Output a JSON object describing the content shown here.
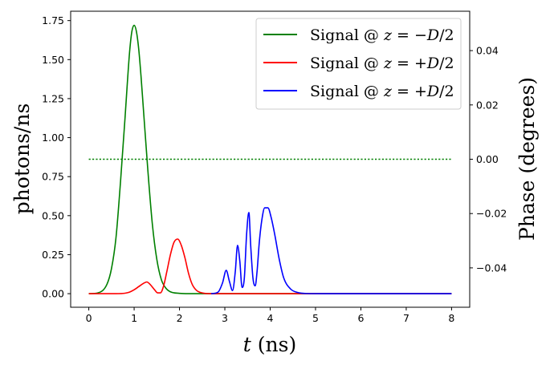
{
  "chart_data": {
    "type": "line",
    "xlabel": "t (ns)",
    "ylabel": "photons/ns",
    "y2label": "Phase (degrees)",
    "xlim": [
      -0.4,
      8.4
    ],
    "ylim": [
      -0.087,
      1.81
    ],
    "y2lim": [
      -0.0545,
      0.0545
    ],
    "xticks": [
      "0",
      "1",
      "2",
      "3",
      "4",
      "5",
      "6",
      "7",
      "8"
    ],
    "yticks": [
      "0.00",
      "0.25",
      "0.50",
      "0.75",
      "1.00",
      "1.25",
      "1.50",
      "1.75"
    ],
    "y2ticks": [
      "0.04",
      "0.02",
      "0.00",
      "−0.02",
      "−0.04"
    ],
    "legend_position": "top-right",
    "series": [
      {
        "name": "Signal @ z = −D/2",
        "color": "#008000",
        "style": "solid",
        "axis": "left",
        "x": [
          0,
          0.2,
          0.4,
          0.5,
          0.6,
          0.7,
          0.8,
          0.85,
          0.9,
          0.95,
          1.0,
          1.05,
          1.1,
          1.15,
          1.2,
          1.3,
          1.4,
          1.5,
          1.6,
          1.7,
          1.8,
          2.0,
          2.2,
          2.5,
          3.0,
          4.0,
          5.0,
          6.0,
          7.0,
          8.0
        ],
        "y": [
          0,
          0.005,
          0.06,
          0.16,
          0.36,
          0.72,
          1.13,
          1.35,
          1.55,
          1.68,
          1.72,
          1.68,
          1.57,
          1.4,
          1.2,
          0.8,
          0.45,
          0.22,
          0.09,
          0.035,
          0.012,
          0.002,
          0,
          0,
          0,
          0,
          0,
          0,
          0,
          0
        ]
      },
      {
        "name": "Signal @ z = +D/2",
        "color": "#ff0000",
        "style": "solid",
        "axis": "left",
        "x": [
          0,
          0.6,
          0.8,
          0.9,
          1.0,
          1.1,
          1.2,
          1.28,
          1.35,
          1.45,
          1.52,
          1.58,
          1.65,
          1.72,
          1.8,
          1.88,
          1.96,
          2.04,
          2.12,
          2.2,
          2.28,
          2.38,
          2.5,
          2.7,
          3.0,
          4.0,
          5.0,
          6.0,
          7.0,
          8.0
        ],
        "y": [
          0,
          0,
          0.003,
          0.01,
          0.025,
          0.045,
          0.065,
          0.075,
          0.06,
          0.025,
          0.005,
          0.005,
          0.05,
          0.14,
          0.25,
          0.33,
          0.35,
          0.31,
          0.23,
          0.13,
          0.06,
          0.02,
          0.005,
          0,
          0,
          0,
          0,
          0,
          0,
          0
        ]
      },
      {
        "name": "Signal @ z = +D/2",
        "color": "#0000ff",
        "style": "solid",
        "axis": "left",
        "x": [
          2.7,
          2.85,
          2.95,
          3.03,
          3.1,
          3.17,
          3.23,
          3.28,
          3.33,
          3.38,
          3.43,
          3.48,
          3.53,
          3.57,
          3.62,
          3.67,
          3.71,
          3.76,
          3.82,
          3.88,
          3.95,
          4.02,
          4.1,
          4.2,
          4.3,
          4.45,
          4.6,
          4.8,
          5.2,
          6.0,
          7.0,
          8.0
        ],
        "y": [
          0,
          0.01,
          0.07,
          0.15,
          0.08,
          0.02,
          0.14,
          0.31,
          0.21,
          0.04,
          0.1,
          0.38,
          0.52,
          0.31,
          0.1,
          0.05,
          0.14,
          0.33,
          0.48,
          0.55,
          0.55,
          0.49,
          0.38,
          0.22,
          0.1,
          0.03,
          0.008,
          0.001,
          0,
          0,
          0,
          0
        ]
      },
      {
        "name": "",
        "color": "#008000",
        "style": "dotted",
        "axis": "right",
        "x": [
          0,
          8
        ],
        "y": [
          0,
          0
        ]
      }
    ]
  }
}
